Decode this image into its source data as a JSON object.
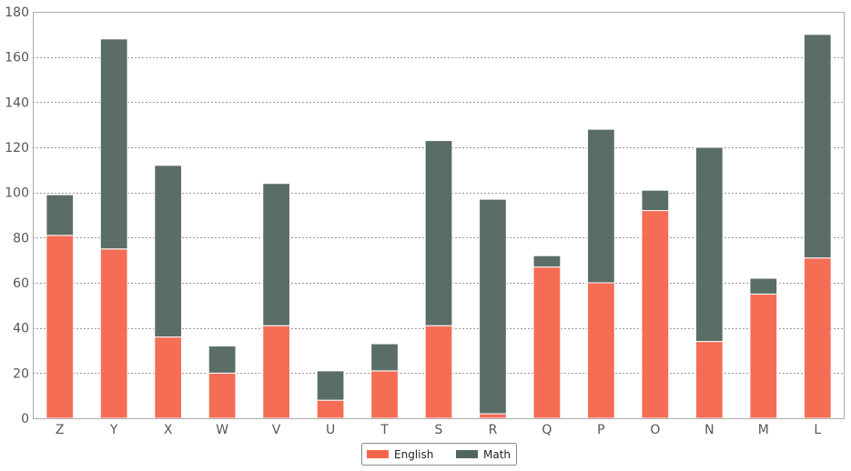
{
  "chart_data": {
    "type": "bar",
    "stacked": true,
    "categories": [
      "Z",
      "Y",
      "X",
      "W",
      "V",
      "U",
      "T",
      "S",
      "R",
      "Q",
      "P",
      "O",
      "N",
      "M",
      "L"
    ],
    "series": [
      {
        "name": "English",
        "color": "#f4654c",
        "values": [
          81,
          75,
          36,
          20,
          41,
          8,
          21,
          41,
          2,
          67,
          60,
          92,
          34,
          55,
          71
        ]
      },
      {
        "name": "Math",
        "color": "#52665e",
        "values": [
          18,
          93,
          76,
          12,
          63,
          13,
          12,
          82,
          95,
          5,
          68,
          9,
          86,
          7,
          99
        ]
      }
    ],
    "ylim": [
      0,
      180
    ],
    "yticks": [
      0,
      20,
      40,
      60,
      80,
      100,
      120,
      140,
      160,
      180
    ],
    "grid": true,
    "legend": "bottom-center"
  }
}
